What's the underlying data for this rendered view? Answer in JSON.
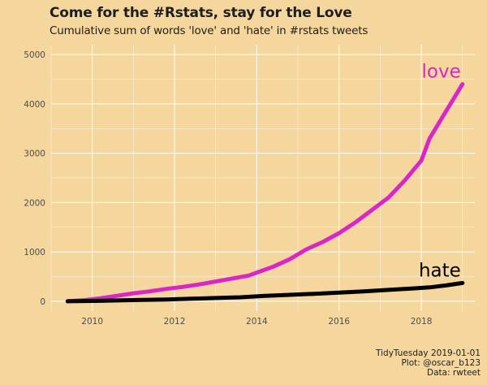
{
  "title": "Come for the #Rstats, stay for the Love",
  "subtitle": "Cumulative sum of words 'love' and 'hate' in #rstats tweets",
  "caption": [
    "TidyTuesday 2019-01-01",
    "Plot: @oscar_b123",
    "Data: rwteet"
  ],
  "colors": {
    "background": "#f5d69d",
    "grid": "#ffffff",
    "love": "#d926c9",
    "hate": "#000000"
  },
  "chart_data": {
    "type": "line",
    "xlim": [
      2009.0,
      2019.3
    ],
    "ylim": [
      -200,
      5200
    ],
    "x_ticks": [
      2010,
      2012,
      2014,
      2016,
      2018
    ],
    "y_ticks": [
      0,
      1000,
      2000,
      3000,
      4000,
      5000
    ],
    "grid": true,
    "legend": "direct labels at line ends",
    "series": [
      {
        "name": "love",
        "color": "#d926c9",
        "x": [
          2009.4,
          2009.8,
          2010.2,
          2010.6,
          2011.0,
          2011.4,
          2011.8,
          2012.2,
          2012.6,
          2013.0,
          2013.4,
          2013.8,
          2014.0,
          2014.4,
          2014.8,
          2015.2,
          2015.6,
          2016.0,
          2016.4,
          2016.8,
          2017.2,
          2017.6,
          2018.0,
          2018.2,
          2018.6,
          2019.0
        ],
        "y": [
          0,
          20,
          60,
          110,
          160,
          200,
          250,
          290,
          340,
          400,
          460,
          520,
          580,
          700,
          850,
          1050,
          1200,
          1380,
          1600,
          1850,
          2100,
          2450,
          2850,
          3300,
          3850,
          4400
        ]
      },
      {
        "name": "hate",
        "color": "#000000",
        "x": [
          2009.4,
          2010.0,
          2010.6,
          2011.2,
          2011.8,
          2012.4,
          2013.0,
          2013.6,
          2014.2,
          2014.8,
          2015.4,
          2016.0,
          2016.6,
          2017.2,
          2017.8,
          2018.2,
          2018.6,
          2019.0
        ],
        "y": [
          0,
          5,
          15,
          25,
          35,
          50,
          65,
          80,
          110,
          130,
          150,
          175,
          200,
          230,
          260,
          280,
          320,
          370
        ]
      }
    ]
  }
}
